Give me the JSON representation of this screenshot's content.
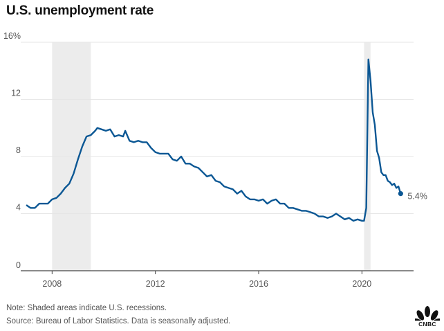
{
  "title": "U.S. unemployment rate",
  "notes": {
    "shaded": "Note: Shaded areas indicate U.S. recessions.",
    "source": "Source: Bureau of Labor Statistics. Data is seasonally adjusted."
  },
  "logo_text": "CNBC",
  "colors": {
    "line": "#0b5794",
    "recession": "#ececec",
    "grid": "#e6e6e6",
    "axis": "#444444"
  },
  "chart_data": {
    "type": "line",
    "title": "U.S. unemployment rate",
    "xlabel": "",
    "ylabel": "",
    "x_ticks": [
      2008,
      2012,
      2016,
      2020
    ],
    "y_ticks": [
      "0",
      "4",
      "8",
      "12",
      "16%"
    ],
    "y_tick_values": [
      0,
      4,
      8,
      12,
      16
    ],
    "xlim": [
      "2007-01",
      "2021-12"
    ],
    "ylim": [
      0,
      16
    ],
    "grid": true,
    "recession_periods": [
      [
        "2008-01",
        "2009-06"
      ],
      [
        "2020-02",
        "2020-04"
      ]
    ],
    "end_label": "5.4%",
    "series": [
      {
        "values_unit": "percent",
        "points": [
          [
            "2007-01",
            4.6
          ],
          [
            "2007-03",
            4.4
          ],
          [
            "2007-05",
            4.4
          ],
          [
            "2007-07",
            4.7
          ],
          [
            "2007-09",
            4.7
          ],
          [
            "2007-11",
            4.7
          ],
          [
            "2008-01",
            5.0
          ],
          [
            "2008-03",
            5.1
          ],
          [
            "2008-05",
            5.4
          ],
          [
            "2008-07",
            5.8
          ],
          [
            "2008-09",
            6.1
          ],
          [
            "2008-11",
            6.8
          ],
          [
            "2009-01",
            7.8
          ],
          [
            "2009-03",
            8.7
          ],
          [
            "2009-05",
            9.4
          ],
          [
            "2009-07",
            9.5
          ],
          [
            "2009-09",
            9.8
          ],
          [
            "2009-10",
            10.0
          ],
          [
            "2009-12",
            9.9
          ],
          [
            "2010-02",
            9.8
          ],
          [
            "2010-04",
            9.9
          ],
          [
            "2010-06",
            9.4
          ],
          [
            "2010-08",
            9.5
          ],
          [
            "2010-10",
            9.4
          ],
          [
            "2010-11",
            9.8
          ],
          [
            "2011-01",
            9.1
          ],
          [
            "2011-03",
            9.0
          ],
          [
            "2011-05",
            9.1
          ],
          [
            "2011-07",
            9.0
          ],
          [
            "2011-09",
            9.0
          ],
          [
            "2011-11",
            8.6
          ],
          [
            "2012-01",
            8.3
          ],
          [
            "2012-03",
            8.2
          ],
          [
            "2012-05",
            8.2
          ],
          [
            "2012-07",
            8.2
          ],
          [
            "2012-09",
            7.8
          ],
          [
            "2012-11",
            7.7
          ],
          [
            "2013-01",
            8.0
          ],
          [
            "2013-03",
            7.5
          ],
          [
            "2013-05",
            7.5
          ],
          [
            "2013-07",
            7.3
          ],
          [
            "2013-09",
            7.2
          ],
          [
            "2013-11",
            6.9
          ],
          [
            "2014-01",
            6.6
          ],
          [
            "2014-03",
            6.7
          ],
          [
            "2014-05",
            6.3
          ],
          [
            "2014-07",
            6.2
          ],
          [
            "2014-09",
            5.9
          ],
          [
            "2014-11",
            5.8
          ],
          [
            "2015-01",
            5.7
          ],
          [
            "2015-03",
            5.4
          ],
          [
            "2015-05",
            5.6
          ],
          [
            "2015-07",
            5.2
          ],
          [
            "2015-09",
            5.0
          ],
          [
            "2015-11",
            5.0
          ],
          [
            "2016-01",
            4.9
          ],
          [
            "2016-03",
            5.0
          ],
          [
            "2016-05",
            4.7
          ],
          [
            "2016-07",
            4.9
          ],
          [
            "2016-09",
            5.0
          ],
          [
            "2016-11",
            4.7
          ],
          [
            "2017-01",
            4.7
          ],
          [
            "2017-03",
            4.4
          ],
          [
            "2017-05",
            4.4
          ],
          [
            "2017-07",
            4.3
          ],
          [
            "2017-09",
            4.2
          ],
          [
            "2017-11",
            4.2
          ],
          [
            "2018-01",
            4.1
          ],
          [
            "2018-03",
            4.0
          ],
          [
            "2018-05",
            3.8
          ],
          [
            "2018-07",
            3.8
          ],
          [
            "2018-09",
            3.7
          ],
          [
            "2018-11",
            3.8
          ],
          [
            "2019-01",
            4.0
          ],
          [
            "2019-03",
            3.8
          ],
          [
            "2019-05",
            3.6
          ],
          [
            "2019-07",
            3.7
          ],
          [
            "2019-09",
            3.5
          ],
          [
            "2019-11",
            3.6
          ],
          [
            "2020-01",
            3.5
          ],
          [
            "2020-02",
            3.5
          ],
          [
            "2020-03",
            4.4
          ],
          [
            "2020-04",
            14.8
          ],
          [
            "2020-05",
            13.3
          ],
          [
            "2020-06",
            11.1
          ],
          [
            "2020-07",
            10.2
          ],
          [
            "2020-08",
            8.4
          ],
          [
            "2020-09",
            7.9
          ],
          [
            "2020-10",
            6.9
          ],
          [
            "2020-11",
            6.7
          ],
          [
            "2020-12",
            6.7
          ],
          [
            "2021-01",
            6.3
          ],
          [
            "2021-02",
            6.2
          ],
          [
            "2021-03",
            6.0
          ],
          [
            "2021-04",
            6.1
          ],
          [
            "2021-05",
            5.8
          ],
          [
            "2021-06",
            5.9
          ],
          [
            "2021-07",
            5.4
          ]
        ]
      }
    ]
  }
}
